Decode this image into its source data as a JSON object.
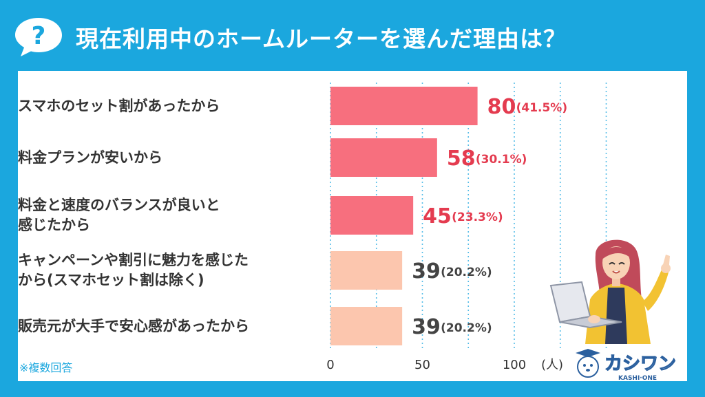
{
  "title": "現在利用中のホームルーターを選んだ理由は？",
  "note": "※複数回答",
  "logo": {
    "name": "カシワン",
    "sub": "KASHI·ONE"
  },
  "colors": {
    "background": "#1ba7de",
    "bar_high": "#f76f7e",
    "bar_low": "#fcc6ae",
    "value_high": "#e43b4f",
    "value_low": "#444444",
    "grid": "#55bde8"
  },
  "chart_data": {
    "type": "bar",
    "orientation": "horizontal",
    "categories": [
      [
        "スマホのセット割があったから"
      ],
      [
        "料金プランが安いから"
      ],
      [
        "料金と速度のバランスが良いと",
        "感じたから"
      ],
      [
        "キャンペーンや割引に魅力を感じた",
        "から(スマホセット割は除く)"
      ],
      [
        "販売元が大手で安心感があったから"
      ]
    ],
    "values": [
      80,
      58,
      45,
      39,
      39
    ],
    "percent_labels": [
      "(41.5%)",
      "(30.1%)",
      "(23.3%)",
      "(20.2%)",
      "(20.2%)"
    ],
    "highlight": [
      true,
      true,
      true,
      false,
      false
    ],
    "xlim": [
      0,
      150
    ],
    "xticks": [
      0,
      50,
      100
    ],
    "xunit": "(人)",
    "grid": true
  }
}
